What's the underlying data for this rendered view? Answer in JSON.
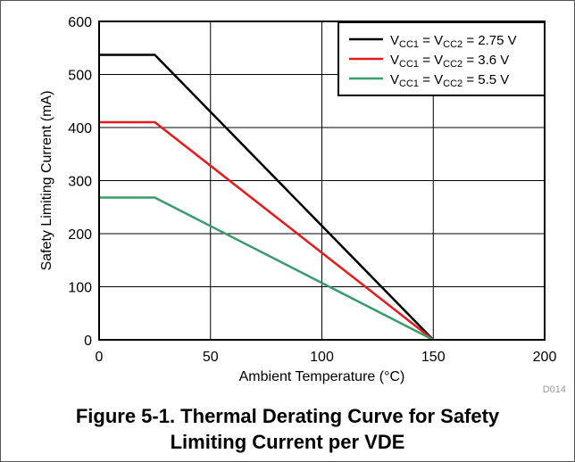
{
  "chart_data": {
    "type": "line",
    "title": "",
    "xlabel": "Ambient Temperature (°C)",
    "ylabel": "Safety Limiting Current (mA)",
    "xlim": [
      0,
      200
    ],
    "ylim": [
      0,
      600
    ],
    "xticks": [
      "0",
      "50",
      "100",
      "150",
      "200"
    ],
    "yticks": [
      "0",
      "100",
      "200",
      "300",
      "400",
      "500",
      "600"
    ],
    "grid": true,
    "legend_position": "top-right",
    "series": [
      {
        "legend": {
          "a": "V",
          "a_sub": "CC1",
          "b": " = V",
          "b_sub": "CC2",
          "c": " = 2.75 V"
        },
        "color": "#000000",
        "x": [
          0,
          25,
          150
        ],
        "y": [
          537,
          537,
          0
        ]
      },
      {
        "legend": {
          "a": "V",
          "a_sub": "CC1",
          "b": " = V",
          "b_sub": "CC2",
          "c": " = 3.6 V"
        },
        "color": "#e41a1c",
        "x": [
          0,
          25,
          150
        ],
        "y": [
          410,
          410,
          0
        ]
      },
      {
        "legend": {
          "a": "V",
          "a_sub": "CC1",
          "b": " = V",
          "b_sub": "CC2",
          "c": " = 5.5 V"
        },
        "color": "#3a9b6c",
        "x": [
          0,
          25,
          150
        ],
        "y": [
          268,
          268,
          0
        ]
      }
    ],
    "figure_code": "D014"
  },
  "caption": {
    "line1": "Figure 5-1. Thermal Derating Curve for Safety",
    "line2": "Limiting Current per VDE"
  }
}
